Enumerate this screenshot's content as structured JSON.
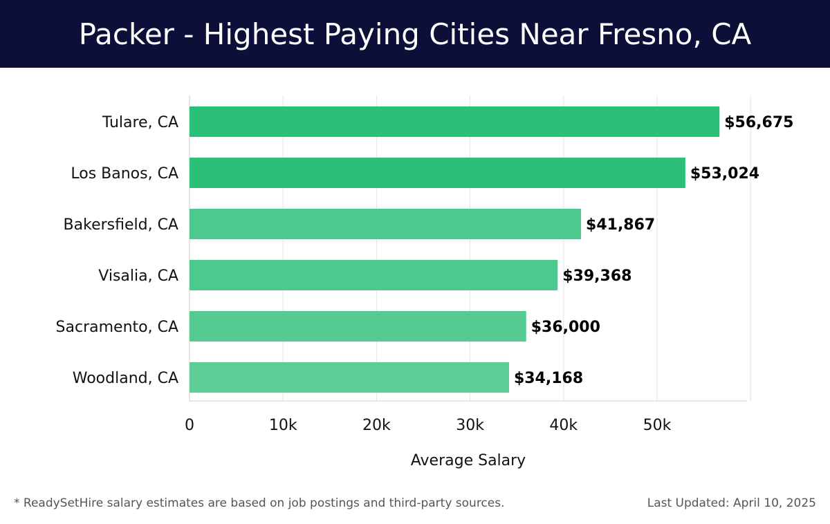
{
  "header": {
    "title": "Packer - Highest Paying Cities Near Fresno, CA"
  },
  "chart_data": {
    "type": "bar",
    "orientation": "horizontal",
    "title": "Packer - Highest Paying Cities Near Fresno, CA",
    "categories": [
      "Tulare, CA",
      "Los Banos, CA",
      "Bakersfield, CA",
      "Visalia, CA",
      "Sacramento, CA",
      "Woodland, CA"
    ],
    "values": [
      56675,
      53024,
      41867,
      39368,
      36000,
      34168
    ],
    "value_labels": [
      "$56,675",
      "$53,024",
      "$41,867",
      "$39,368",
      "$36,000",
      "$34,168"
    ],
    "bar_colors": [
      "#2bbf77",
      "#2bbf77",
      "#4cc98c",
      "#4cc98c",
      "#55cb91",
      "#5bcd95"
    ],
    "xlabel": "Average Salary",
    "ylabel": "",
    "xlim": [
      0,
      60000
    ],
    "x_ticks": [
      0,
      10000,
      20000,
      30000,
      40000,
      50000
    ],
    "x_tick_labels": [
      "0",
      "10k",
      "20k",
      "30k",
      "40k",
      "50k"
    ],
    "grid": true
  },
  "footer": {
    "note": "* ReadySetHire salary estimates are based on job postings and third-party sources.",
    "updated": "Last Updated: April 10, 2025"
  },
  "colors": {
    "header_bg": "#0c1038",
    "bar_primary": "#2bbf77",
    "bar_secondary": "#4cc98c"
  }
}
